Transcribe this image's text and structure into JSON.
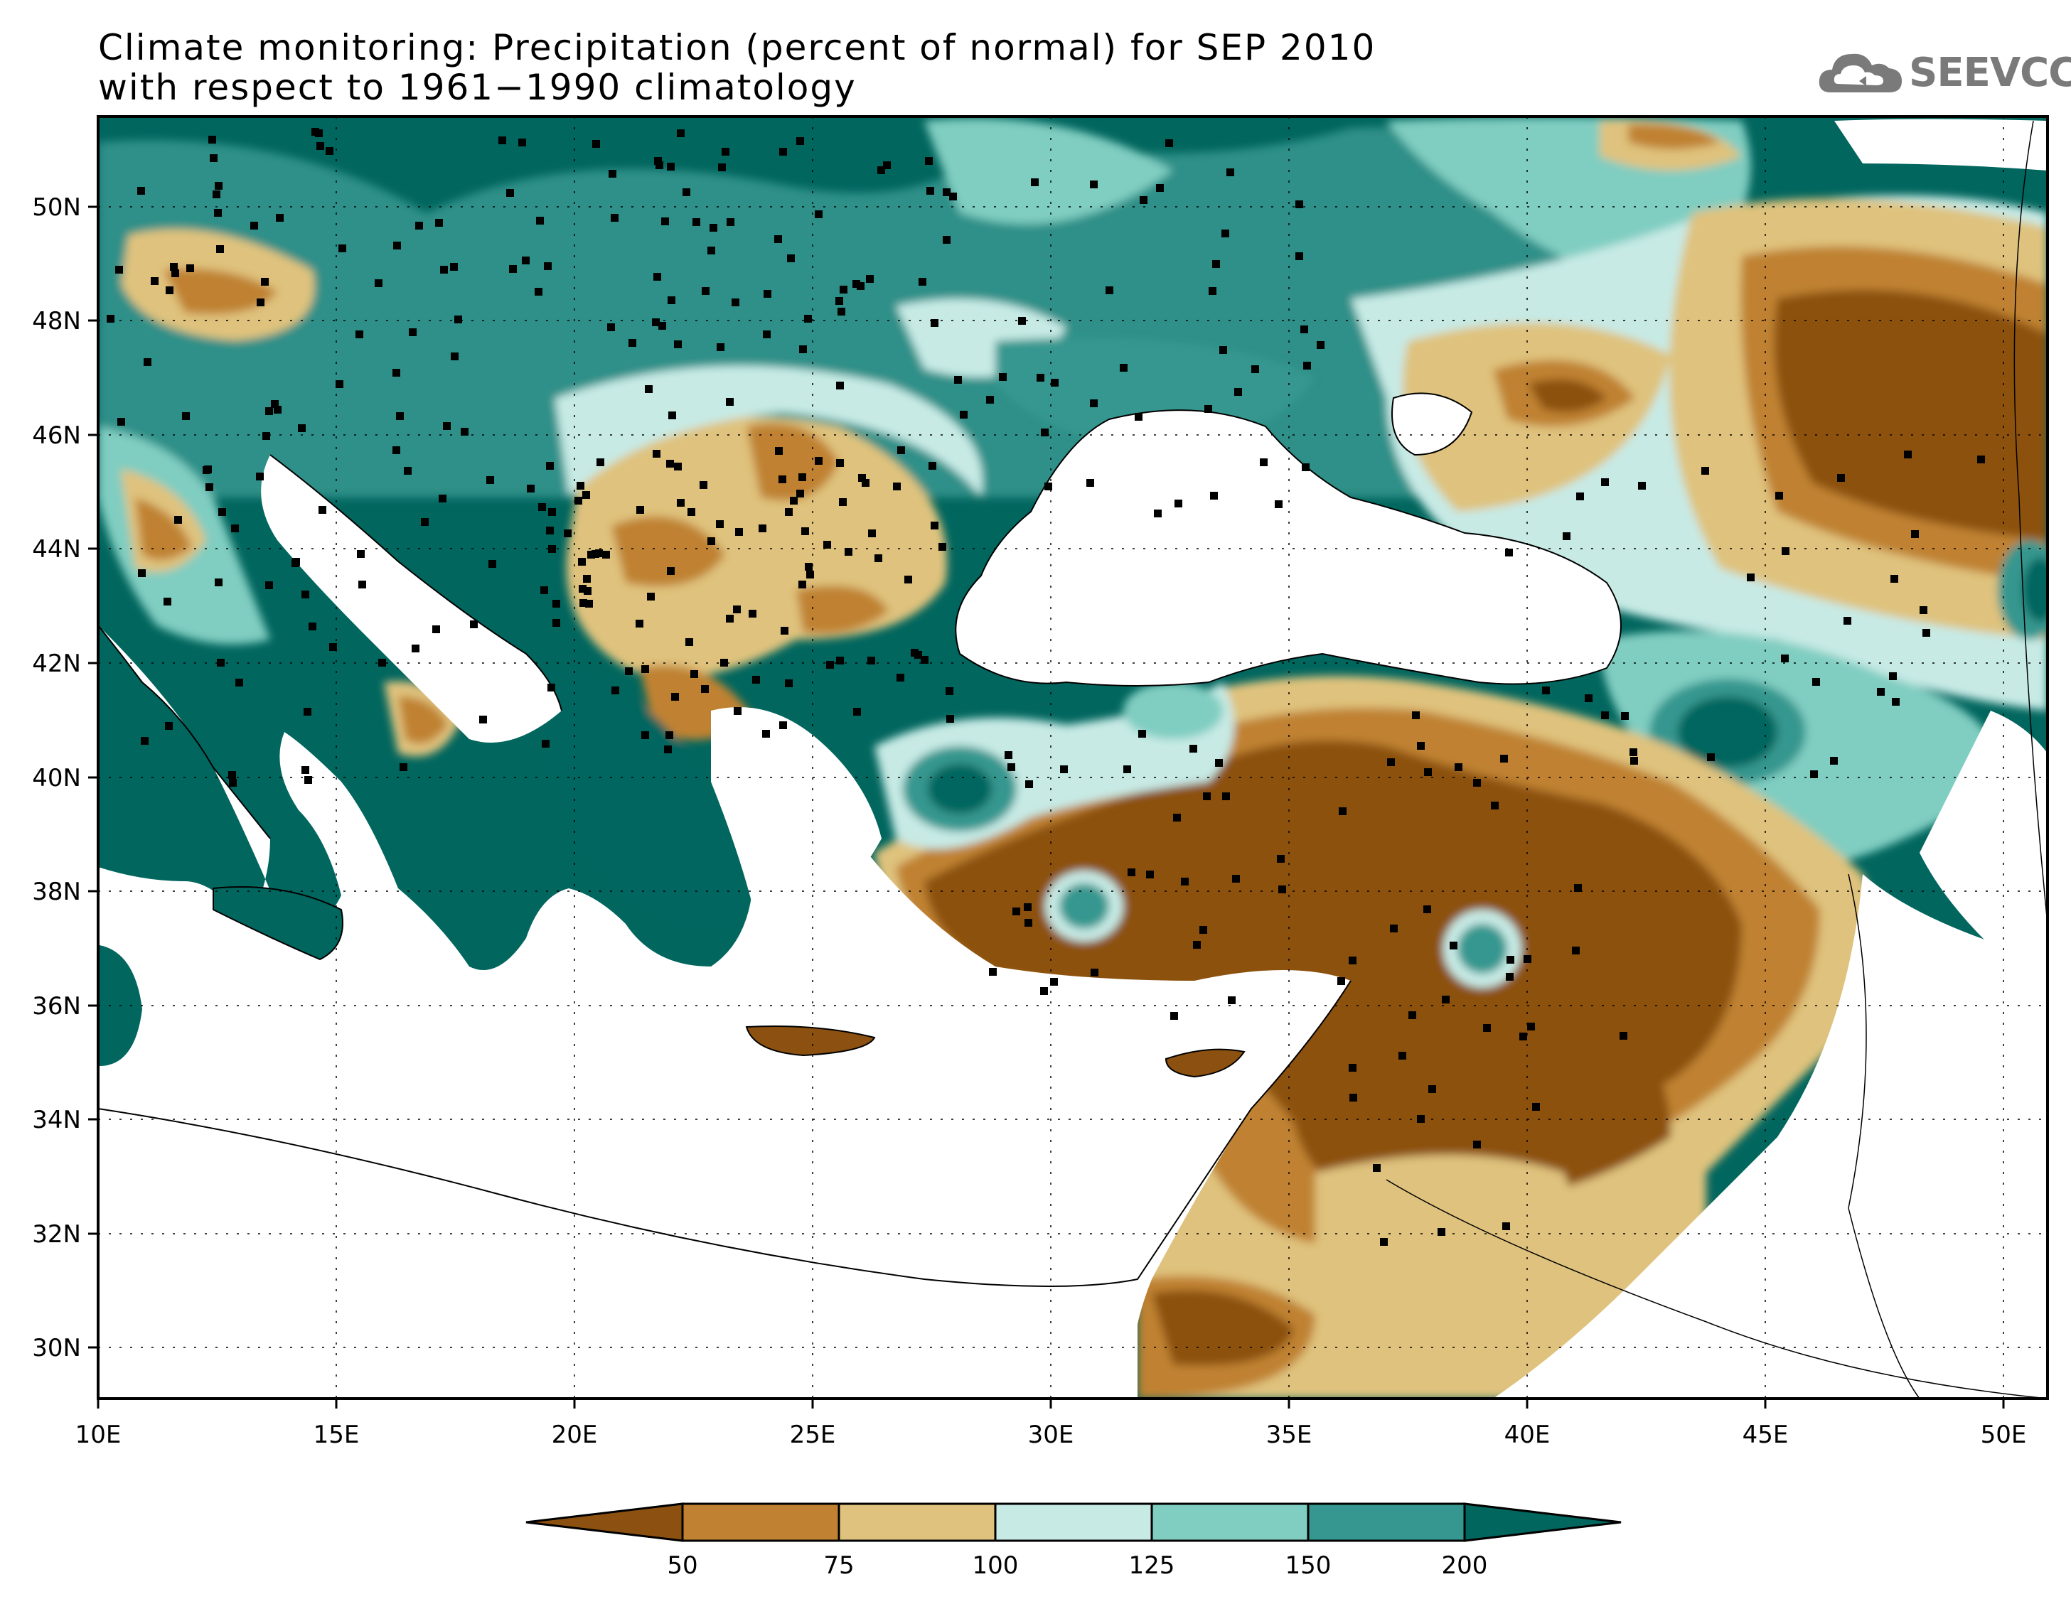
{
  "title": {
    "line1": "Climate monitoring: Precipitation (percent of normal) for SEP 2010",
    "line2": "with respect to 1961−1990 climatology"
  },
  "logo": {
    "text": "SEEVCCC",
    "icon": "cloud-icon"
  },
  "map": {
    "x_ticks": [
      "10E",
      "15E",
      "20E",
      "25E",
      "30E",
      "35E",
      "40E",
      "45E",
      "50E"
    ],
    "y_ticks": [
      "30N",
      "32N",
      "34N",
      "36N",
      "38N",
      "40N",
      "42N",
      "44N",
      "46N",
      "48N",
      "50N"
    ]
  },
  "legend": {
    "labels": [
      "50",
      "75",
      "100",
      "125",
      "150",
      "200"
    ],
    "colors": [
      "#8c5110",
      "#c08232",
      "#dfc27d",
      "#c7eae5",
      "#80cdc1",
      "#35978f",
      "#01665e"
    ]
  }
}
